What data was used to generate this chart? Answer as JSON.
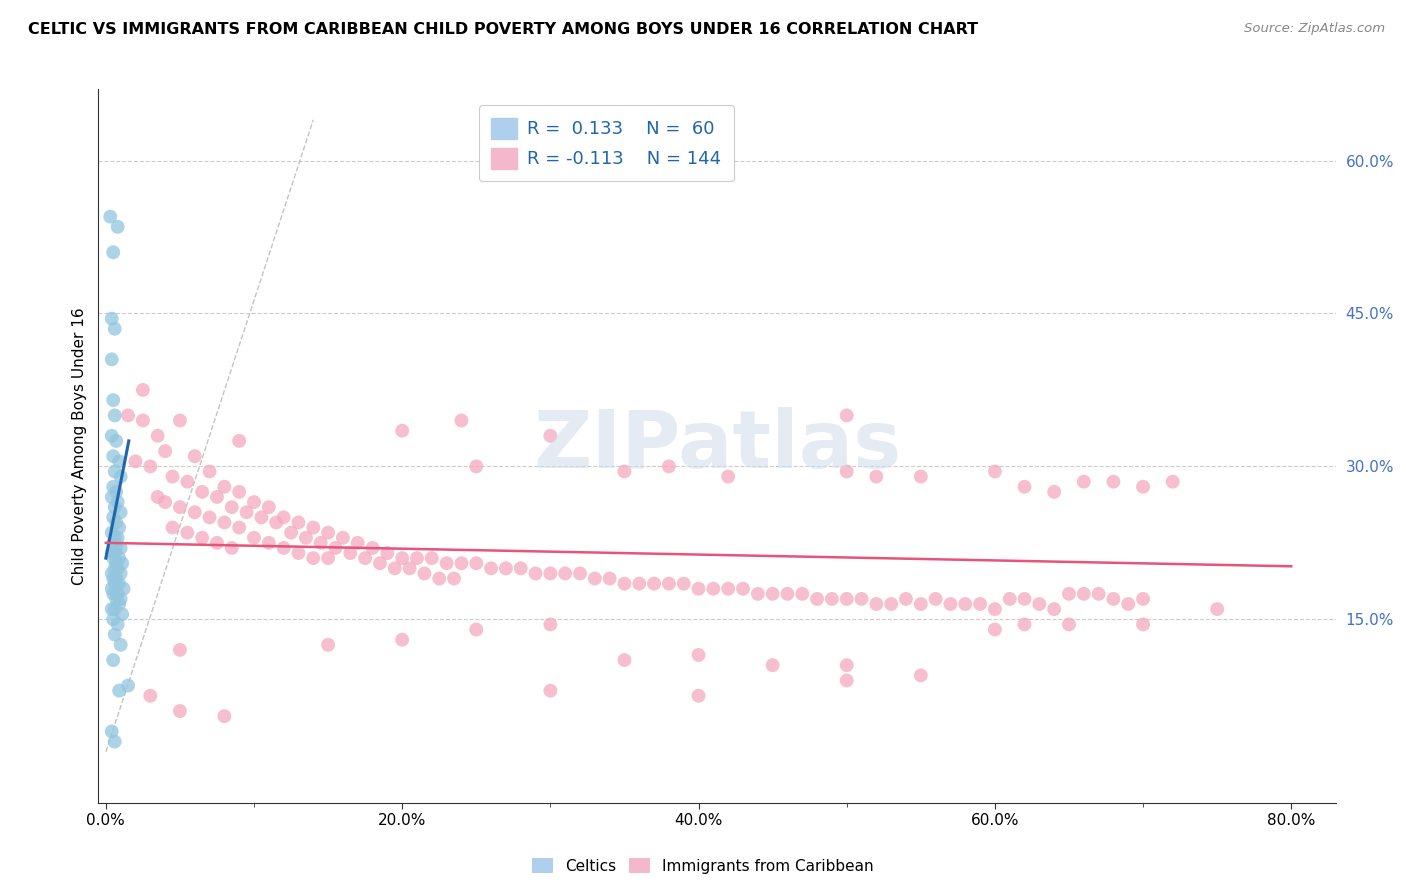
{
  "title": "CELTIC VS IMMIGRANTS FROM CARIBBEAN CHILD POVERTY AMONG BOYS UNDER 16 CORRELATION CHART",
  "source": "Source: ZipAtlas.com",
  "ylabel": "Child Poverty Among Boys Under 16",
  "ylabel_ticks_right": [
    "15.0%",
    "30.0%",
    "45.0%",
    "60.0%"
  ],
  "ylabel_vals": [
    15.0,
    30.0,
    45.0,
    60.0
  ],
  "ylim": [
    -3,
    67
  ],
  "xlim": [
    -0.5,
    83
  ],
  "watermark": "ZIPatlas",
  "blue_color": "#92c5de",
  "pink_color": "#f4a9be",
  "blue_line_color": "#2166ac",
  "pink_line_color": "#e8537a",
  "blue_scatter": [
    [
      0.3,
      54.5
    ],
    [
      0.8,
      53.5
    ],
    [
      0.5,
      51.0
    ],
    [
      0.4,
      44.5
    ],
    [
      0.6,
      43.5
    ],
    [
      0.4,
      40.5
    ],
    [
      0.5,
      36.5
    ],
    [
      0.6,
      35.0
    ],
    [
      0.4,
      33.0
    ],
    [
      0.7,
      32.5
    ],
    [
      0.5,
      31.0
    ],
    [
      0.9,
      30.5
    ],
    [
      0.6,
      29.5
    ],
    [
      1.0,
      29.0
    ],
    [
      0.5,
      28.0
    ],
    [
      0.7,
      27.5
    ],
    [
      0.4,
      27.0
    ],
    [
      0.8,
      26.5
    ],
    [
      0.6,
      26.0
    ],
    [
      1.0,
      25.5
    ],
    [
      0.5,
      25.0
    ],
    [
      0.7,
      24.5
    ],
    [
      0.9,
      24.0
    ],
    [
      0.4,
      23.5
    ],
    [
      0.6,
      23.0
    ],
    [
      0.8,
      23.0
    ],
    [
      0.5,
      22.5
    ],
    [
      0.7,
      22.0
    ],
    [
      1.0,
      22.0
    ],
    [
      0.6,
      21.5
    ],
    [
      0.4,
      21.5
    ],
    [
      0.9,
      21.0
    ],
    [
      0.5,
      21.0
    ],
    [
      0.7,
      20.5
    ],
    [
      1.1,
      20.5
    ],
    [
      0.6,
      20.0
    ],
    [
      0.8,
      20.0
    ],
    [
      0.4,
      19.5
    ],
    [
      1.0,
      19.5
    ],
    [
      0.5,
      19.0
    ],
    [
      0.7,
      19.0
    ],
    [
      0.9,
      18.5
    ],
    [
      0.6,
      18.5
    ],
    [
      1.2,
      18.0
    ],
    [
      0.4,
      18.0
    ],
    [
      0.8,
      17.5
    ],
    [
      0.5,
      17.5
    ],
    [
      1.0,
      17.0
    ],
    [
      0.7,
      17.0
    ],
    [
      0.9,
      16.5
    ],
    [
      0.6,
      16.0
    ],
    [
      0.4,
      16.0
    ],
    [
      1.1,
      15.5
    ],
    [
      0.5,
      15.0
    ],
    [
      0.8,
      14.5
    ],
    [
      0.6,
      13.5
    ],
    [
      1.0,
      12.5
    ],
    [
      0.5,
      11.0
    ],
    [
      1.5,
      8.5
    ],
    [
      0.9,
      8.0
    ],
    [
      0.4,
      4.0
    ],
    [
      0.6,
      3.0
    ]
  ],
  "pink_scatter": [
    [
      1.5,
      35.0
    ],
    [
      2.5,
      34.5
    ],
    [
      3.5,
      33.0
    ],
    [
      4.0,
      31.5
    ],
    [
      2.0,
      30.5
    ],
    [
      5.0,
      34.5
    ],
    [
      6.0,
      31.0
    ],
    [
      3.0,
      30.0
    ],
    [
      7.0,
      29.5
    ],
    [
      4.5,
      29.0
    ],
    [
      5.5,
      28.5
    ],
    [
      8.0,
      28.0
    ],
    [
      6.5,
      27.5
    ],
    [
      3.5,
      27.0
    ],
    [
      9.0,
      27.5
    ],
    [
      7.5,
      27.0
    ],
    [
      4.0,
      26.5
    ],
    [
      10.0,
      26.5
    ],
    [
      8.5,
      26.0
    ],
    [
      5.0,
      26.0
    ],
    [
      11.0,
      26.0
    ],
    [
      6.0,
      25.5
    ],
    [
      9.5,
      25.5
    ],
    [
      12.0,
      25.0
    ],
    [
      7.0,
      25.0
    ],
    [
      10.5,
      25.0
    ],
    [
      13.0,
      24.5
    ],
    [
      8.0,
      24.5
    ],
    [
      11.5,
      24.5
    ],
    [
      4.5,
      24.0
    ],
    [
      14.0,
      24.0
    ],
    [
      9.0,
      24.0
    ],
    [
      12.5,
      23.5
    ],
    [
      5.5,
      23.5
    ],
    [
      15.0,
      23.5
    ],
    [
      10.0,
      23.0
    ],
    [
      13.5,
      23.0
    ],
    [
      6.5,
      23.0
    ],
    [
      16.0,
      23.0
    ],
    [
      11.0,
      22.5
    ],
    [
      14.5,
      22.5
    ],
    [
      7.5,
      22.5
    ],
    [
      17.0,
      22.5
    ],
    [
      12.0,
      22.0
    ],
    [
      15.5,
      22.0
    ],
    [
      8.5,
      22.0
    ],
    [
      18.0,
      22.0
    ],
    [
      13.0,
      21.5
    ],
    [
      16.5,
      21.5
    ],
    [
      19.0,
      21.5
    ],
    [
      20.0,
      21.0
    ],
    [
      14.0,
      21.0
    ],
    [
      17.5,
      21.0
    ],
    [
      21.0,
      21.0
    ],
    [
      22.0,
      21.0
    ],
    [
      15.0,
      21.0
    ],
    [
      18.5,
      20.5
    ],
    [
      23.0,
      20.5
    ],
    [
      24.0,
      20.5
    ],
    [
      25.0,
      20.5
    ],
    [
      19.5,
      20.0
    ],
    [
      26.0,
      20.0
    ],
    [
      27.0,
      20.0
    ],
    [
      28.0,
      20.0
    ],
    [
      20.5,
      20.0
    ],
    [
      29.0,
      19.5
    ],
    [
      30.0,
      19.5
    ],
    [
      21.5,
      19.5
    ],
    [
      31.0,
      19.5
    ],
    [
      32.0,
      19.5
    ],
    [
      22.5,
      19.0
    ],
    [
      33.0,
      19.0
    ],
    [
      34.0,
      19.0
    ],
    [
      23.5,
      19.0
    ],
    [
      35.0,
      18.5
    ],
    [
      36.0,
      18.5
    ],
    [
      37.0,
      18.5
    ],
    [
      38.0,
      18.5
    ],
    [
      39.0,
      18.5
    ],
    [
      40.0,
      18.0
    ],
    [
      41.0,
      18.0
    ],
    [
      42.0,
      18.0
    ],
    [
      43.0,
      18.0
    ],
    [
      44.0,
      17.5
    ],
    [
      45.0,
      17.5
    ],
    [
      46.0,
      17.5
    ],
    [
      47.0,
      17.5
    ],
    [
      48.0,
      17.0
    ],
    [
      49.0,
      17.0
    ],
    [
      50.0,
      17.0
    ],
    [
      51.0,
      17.0
    ],
    [
      52.0,
      16.5
    ],
    [
      53.0,
      16.5
    ],
    [
      54.0,
      17.0
    ],
    [
      55.0,
      16.5
    ],
    [
      56.0,
      17.0
    ],
    [
      57.0,
      16.5
    ],
    [
      58.0,
      16.5
    ],
    [
      59.0,
      16.5
    ],
    [
      60.0,
      16.0
    ],
    [
      61.0,
      17.0
    ],
    [
      62.0,
      17.0
    ],
    [
      63.0,
      16.5
    ],
    [
      64.0,
      16.0
    ],
    [
      65.0,
      17.5
    ],
    [
      66.0,
      17.5
    ],
    [
      67.0,
      17.5
    ],
    [
      68.0,
      17.0
    ],
    [
      69.0,
      16.5
    ],
    [
      70.0,
      17.0
    ],
    [
      2.5,
      37.5
    ],
    [
      9.0,
      32.5
    ],
    [
      20.0,
      33.5
    ],
    [
      24.0,
      34.5
    ],
    [
      25.0,
      30.0
    ],
    [
      30.0,
      33.0
    ],
    [
      35.0,
      29.5
    ],
    [
      38.0,
      30.0
    ],
    [
      42.0,
      29.0
    ],
    [
      50.0,
      35.0
    ],
    [
      50.0,
      29.5
    ],
    [
      52.0,
      29.0
    ],
    [
      55.0,
      29.0
    ],
    [
      60.0,
      29.5
    ],
    [
      62.0,
      28.0
    ],
    [
      64.0,
      27.5
    ],
    [
      66.0,
      28.5
    ],
    [
      68.0,
      28.5
    ],
    [
      70.0,
      28.0
    ],
    [
      72.0,
      28.5
    ],
    [
      5.0,
      12.0
    ],
    [
      15.0,
      12.5
    ],
    [
      20.0,
      13.0
    ],
    [
      25.0,
      14.0
    ],
    [
      30.0,
      14.5
    ],
    [
      35.0,
      11.0
    ],
    [
      40.0,
      11.5
    ],
    [
      45.0,
      10.5
    ],
    [
      50.0,
      10.5
    ],
    [
      55.0,
      9.5
    ],
    [
      60.0,
      14.0
    ],
    [
      62.0,
      14.5
    ],
    [
      65.0,
      14.5
    ],
    [
      70.0,
      14.5
    ],
    [
      75.0,
      16.0
    ],
    [
      3.0,
      7.5
    ],
    [
      5.0,
      6.0
    ],
    [
      8.0,
      5.5
    ],
    [
      30.0,
      8.0
    ],
    [
      40.0,
      7.5
    ],
    [
      50.0,
      9.0
    ]
  ]
}
